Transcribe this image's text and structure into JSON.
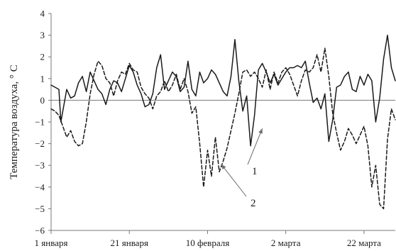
{
  "chart_data": {
    "type": "line",
    "title": "",
    "xlabel": "",
    "ylabel": "Температура воздуха, ° С",
    "ylim": [
      -6,
      4
    ],
    "yticks": [
      -6,
      -5,
      -4,
      -3,
      -2,
      -1,
      0,
      1,
      2,
      3,
      4
    ],
    "ytick_labels": [
      "−6",
      "−5",
      "−4",
      "−3",
      "−2",
      "−1",
      "0",
      "1",
      "2",
      "3",
      "4"
    ],
    "xlim": [
      0,
      88
    ],
    "xticks": [
      0,
      20,
      40,
      60,
      80
    ],
    "xtick_labels": [
      "1 января",
      "21 января",
      "10 февраля",
      "2 марта",
      "22 марта"
    ],
    "grid": false,
    "legend": "none",
    "series": [
      {
        "style": "solid",
        "color": "#1a1a1a",
        "x": [
          0,
          1,
          2,
          2.5,
          3,
          4,
          5,
          6,
          7,
          8,
          9,
          10,
          11,
          12,
          13,
          14,
          15,
          16,
          17,
          18,
          19,
          20,
          21,
          22,
          23,
          24,
          25,
          26,
          27,
          28,
          29,
          30,
          31,
          32,
          33,
          34,
          35,
          36,
          37,
          38,
          39,
          40,
          41,
          42,
          43,
          44,
          45,
          46,
          47,
          48,
          49,
          50,
          51,
          52,
          53,
          54,
          55,
          56,
          57,
          58,
          59,
          60,
          61,
          62,
          63,
          64,
          65,
          66,
          67,
          68,
          69,
          70,
          71,
          72,
          73,
          74,
          75,
          76,
          77,
          78,
          79,
          80,
          81,
          82,
          83,
          84,
          85,
          86,
          87,
          88
        ],
        "y": [
          0.7,
          0.6,
          0.5,
          -1.0,
          -0.5,
          0.5,
          0.1,
          0.2,
          0.8,
          1.1,
          0.4,
          1.3,
          0.9,
          0.5,
          0.3,
          -0.2,
          0.5,
          0.9,
          0.8,
          0.4,
          1.0,
          1.6,
          1.3,
          0.7,
          0.3,
          -0.3,
          -0.2,
          0.3,
          1.5,
          2.1,
          0.5,
          0.9,
          1.3,
          1.1,
          0.4,
          0.6,
          1.8,
          0.5,
          0.2,
          1.3,
          0.8,
          1.0,
          1.4,
          1.2,
          0.8,
          0.4,
          0.2,
          1.1,
          2.8,
          0.9,
          -0.5,
          0.2,
          -2.1,
          -0.7,
          1.4,
          1.7,
          1.3,
          0.8,
          1.2,
          0.7,
          1.0,
          1.3,
          1.5,
          1.5,
          1.6,
          1.5,
          1.8,
          0.8,
          -0.1,
          0.1,
          -0.4,
          0.3,
          -1.9,
          -0.9,
          0.6,
          0.7,
          1.1,
          1.3,
          0.5,
          0.4,
          1.1,
          0.7,
          1.2,
          0.9,
          -1.0,
          0.1,
          1.9,
          3.0,
          1.5,
          0.9
        ]
      },
      {
        "style": "dashed",
        "color": "#1a1a1a",
        "x": [
          0,
          1,
          2,
          3,
          4,
          5,
          6,
          7,
          8,
          9,
          10,
          11,
          12,
          13,
          14,
          15,
          16,
          17,
          18,
          19,
          20,
          21,
          22,
          23,
          24,
          25,
          26,
          27,
          28,
          29,
          30,
          31,
          32,
          33,
          34,
          35,
          36,
          37,
          38,
          39,
          40,
          41,
          42,
          43,
          44,
          45,
          46,
          47,
          48,
          49,
          50,
          51,
          52,
          53,
          54,
          55,
          56,
          57,
          58,
          59,
          60,
          61,
          62,
          63,
          64,
          65,
          66,
          67,
          68,
          69,
          70,
          71,
          72,
          73,
          74,
          75,
          76,
          77,
          78,
          79,
          80,
          81,
          82,
          83,
          84,
          85,
          86,
          87,
          88
        ],
        "y": [
          -0.4,
          -0.5,
          -0.7,
          -1.2,
          -1.7,
          -1.4,
          -1.9,
          -2.1,
          -2.0,
          -1.0,
          0.3,
          1.2,
          1.8,
          1.6,
          1.0,
          0.8,
          0.2,
          0.9,
          1.3,
          1.2,
          1.7,
          1.4,
          1.3,
          0.6,
          0.3,
          0.1,
          -0.4,
          0.2,
          0.4,
          0.9,
          0.4,
          0.7,
          1.2,
          0.5,
          1.0,
          0.4,
          -0.6,
          -0.3,
          -2.0,
          -4.0,
          -2.3,
          -3.5,
          -1.7,
          -3.3,
          -2.8,
          -2.2,
          -1.4,
          -0.6,
          0.3,
          1.3,
          1.4,
          1.1,
          1.3,
          1.0,
          0.6,
          1.4,
          0.5,
          1.3,
          0.8,
          1.3,
          1.5,
          1.2,
          0.7,
          0.2,
          0.9,
          1.4,
          1.3,
          1.5,
          2.1,
          1.3,
          2.4,
          1.1,
          -0.6,
          -1.5,
          -2.3,
          -1.9,
          -1.3,
          -1.6,
          -2.0,
          -1.6,
          -1.2,
          -2.1,
          -4.0,
          -3.0,
          -4.8,
          -5.0,
          -1.8,
          -0.4,
          -0.9
        ]
      }
    ],
    "annotations": [
      {
        "text": "1",
        "series": 0,
        "x": 54,
        "y": -1.3
      },
      {
        "text": "2",
        "series": 1,
        "x": 43.5,
        "y": -2.95
      }
    ]
  }
}
